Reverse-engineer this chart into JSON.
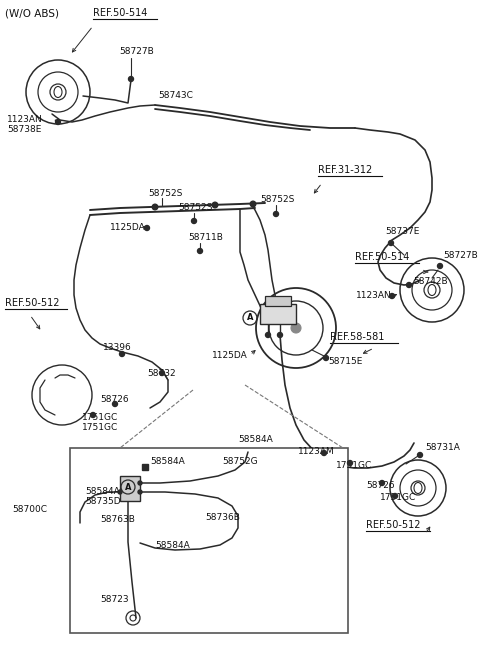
{
  "bg": "#ffffff",
  "lc": "#2a2a2a",
  "tc": "#111111",
  "fig_w": 4.8,
  "fig_h": 6.55,
  "dpi": 100,
  "labels": {
    "wo_abs": "(W/O ABS)",
    "ref50514_tl": "REF.50-514",
    "ref31312": "REF.31-312",
    "ref50512_l": "REF.50-512",
    "ref5858": "REF.58-581",
    "ref50514_br": "REF.50-514",
    "ref50512_br": "REF.50-512",
    "58727B_tl": "58727B",
    "58743C": "58743C",
    "1123AN_tl": "1123AN",
    "58738E": "58738E",
    "58752S_a": "58752S",
    "58752S_b": "58752S",
    "58752S_c": "58752S",
    "1125DA_l": "1125DA",
    "58711B": "58711B",
    "58737E": "58737E",
    "58727B_tr": "58727B",
    "1123AN_r": "1123AN",
    "58742B": "58742B",
    "13396": "13396",
    "58726_l": "58726",
    "58732": "58732",
    "1751GC_l1": "1751GC",
    "1751GC_l2": "1751GC",
    "1125DA_c": "1125DA",
    "58715E": "58715E",
    "1123AM": "1123AM",
    "1751GC_r1": "1751GC",
    "58731A": "58731A",
    "58726_r": "58726",
    "1751GC_br": "1751GC",
    "58700C": "58700C",
    "58584A_a": "58584A",
    "58584A_b": "58584A",
    "58584A_c": "58584A",
    "58584A_d": "58584A",
    "58735D": "58735D",
    "58752G": "58752G",
    "58763B": "58763B",
    "58736B": "58736B",
    "58723": "58723",
    "A": "A"
  }
}
